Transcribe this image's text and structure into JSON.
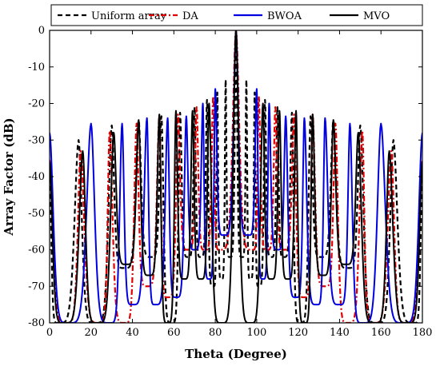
{
  "chart_data": {
    "type": "line",
    "xlabel": "Theta (Degree)",
    "ylabel": "Array Factor (dB)",
    "xlim": [
      0,
      180
    ],
    "ylim": [
      -80,
      0
    ],
    "x_ticks": [
      0,
      20,
      40,
      60,
      80,
      100,
      120,
      140,
      160,
      180
    ],
    "y_ticks": [
      0,
      -10,
      -20,
      -30,
      -40,
      -50,
      -60,
      -70,
      -80
    ],
    "grid": false,
    "legend_position": "top",
    "series": [
      {
        "name": "Uniform array",
        "color": "#000000",
        "style": "dashed",
        "peaks": [
          [
            0,
            -36
          ],
          [
            14,
            -30
          ],
          [
            30,
            -26
          ],
          [
            43,
            -24.5
          ],
          [
            54,
            -23.5
          ],
          [
            63,
            -22.5
          ],
          [
            70,
            -21
          ],
          [
            76,
            -19
          ],
          [
            81,
            -17
          ],
          [
            85,
            -13.5
          ],
          [
            90,
            0
          ],
          [
            95,
            -13.5
          ],
          [
            99,
            -17
          ],
          [
            104,
            -19
          ],
          [
            110,
            -21
          ],
          [
            117,
            -22.5
          ],
          [
            126,
            -23.5
          ],
          [
            137,
            -24.5
          ],
          [
            150,
            -26
          ],
          [
            166,
            -30
          ],
          [
            180,
            -36
          ]
        ],
        "nulls": [
          [
            4,
            -80
          ],
          [
            22,
            -80
          ],
          [
            36,
            -65
          ],
          [
            49,
            -62
          ],
          [
            59,
            -80
          ],
          [
            67,
            -62
          ],
          [
            73,
            -62
          ],
          [
            79,
            -70
          ],
          [
            83,
            -68
          ],
          [
            87,
            -62
          ],
          [
            93,
            -62
          ],
          [
            97,
            -68
          ],
          [
            101,
            -70
          ],
          [
            107,
            -62
          ],
          [
            113,
            -62
          ],
          [
            121,
            -80
          ],
          [
            131,
            -62
          ],
          [
            144,
            -65
          ],
          [
            158,
            -80
          ],
          [
            176,
            -80
          ]
        ]
      },
      {
        "name": "DA",
        "color": "#e00000",
        "style": "dashdot",
        "peaks": [
          [
            0,
            -35.5
          ],
          [
            15,
            -33
          ],
          [
            29,
            -27.5
          ],
          [
            42,
            -25.5
          ],
          [
            53,
            -23
          ],
          [
            62,
            -23
          ],
          [
            71,
            -21
          ],
          [
            79,
            -18
          ],
          [
            90,
            0
          ],
          [
            101,
            -18
          ],
          [
            109,
            -21
          ],
          [
            118,
            -23
          ],
          [
            127,
            -23
          ],
          [
            138,
            -25.5
          ],
          [
            151,
            -27.5
          ],
          [
            165,
            -33
          ],
          [
            180,
            -35.5
          ]
        ],
        "nulls": [
          [
            8,
            -80
          ],
          [
            24,
            -80
          ],
          [
            36,
            -80
          ],
          [
            47,
            -70
          ],
          [
            57,
            -73
          ],
          [
            67,
            -60
          ],
          [
            75,
            -60
          ],
          [
            82,
            -60
          ],
          [
            98,
            -60
          ],
          [
            105,
            -60
          ],
          [
            113,
            -60
          ],
          [
            123,
            -73
          ],
          [
            133,
            -70
          ],
          [
            144,
            -80
          ],
          [
            156,
            -80
          ],
          [
            172,
            -80
          ]
        ]
      },
      {
        "name": "BWOA",
        "color": "#0000e0",
        "style": "solid",
        "peaks": [
          [
            0,
            -28
          ],
          [
            20,
            -25.5
          ],
          [
            35,
            -25.5
          ],
          [
            47,
            -24
          ],
          [
            57,
            -24
          ],
          [
            66,
            -23.5
          ],
          [
            74,
            -20
          ],
          [
            80,
            -16
          ],
          [
            90,
            0
          ],
          [
            100,
            -16
          ],
          [
            106,
            -20
          ],
          [
            114,
            -23.5
          ],
          [
            123,
            -24
          ],
          [
            133,
            -24
          ],
          [
            145,
            -25.5
          ],
          [
            160,
            -25.5
          ],
          [
            180,
            -28
          ]
        ],
        "nulls": [
          [
            9,
            -80
          ],
          [
            29,
            -80
          ],
          [
            40,
            -75
          ],
          [
            51,
            -75
          ],
          [
            61,
            -73
          ],
          [
            70,
            -60
          ],
          [
            77,
            -68
          ],
          [
            84,
            -56
          ],
          [
            96,
            -56
          ],
          [
            103,
            -68
          ],
          [
            110,
            -60
          ],
          [
            119,
            -73
          ],
          [
            129,
            -75
          ],
          [
            140,
            -75
          ],
          [
            151,
            -80
          ],
          [
            171,
            -80
          ]
        ]
      },
      {
        "name": "MVO",
        "color": "#000000",
        "style": "solid",
        "peaks": [
          [
            0,
            -36
          ],
          [
            16,
            -33
          ],
          [
            31,
            -28
          ],
          [
            43,
            -24.5
          ],
          [
            53,
            -23
          ],
          [
            61,
            -22
          ],
          [
            69,
            -22
          ],
          [
            77,
            -20
          ],
          [
            90,
            0
          ],
          [
            103,
            -20
          ],
          [
            111,
            -22
          ],
          [
            119,
            -22
          ],
          [
            127,
            -23
          ],
          [
            137,
            -24.5
          ],
          [
            149,
            -28
          ],
          [
            164,
            -33
          ],
          [
            180,
            -36
          ]
        ],
        "nulls": [
          [
            7,
            -80
          ],
          [
            23,
            -80
          ],
          [
            37,
            -64
          ],
          [
            48,
            -67
          ],
          [
            57,
            -80
          ],
          [
            65,
            -68
          ],
          [
            73,
            -68
          ],
          [
            83,
            -80
          ],
          [
            97,
            -80
          ],
          [
            107,
            -68
          ],
          [
            115,
            -68
          ],
          [
            123,
            -80
          ],
          [
            132,
            -67
          ],
          [
            143,
            -64
          ],
          [
            157,
            -80
          ],
          [
            173,
            -80
          ]
        ]
      }
    ]
  }
}
